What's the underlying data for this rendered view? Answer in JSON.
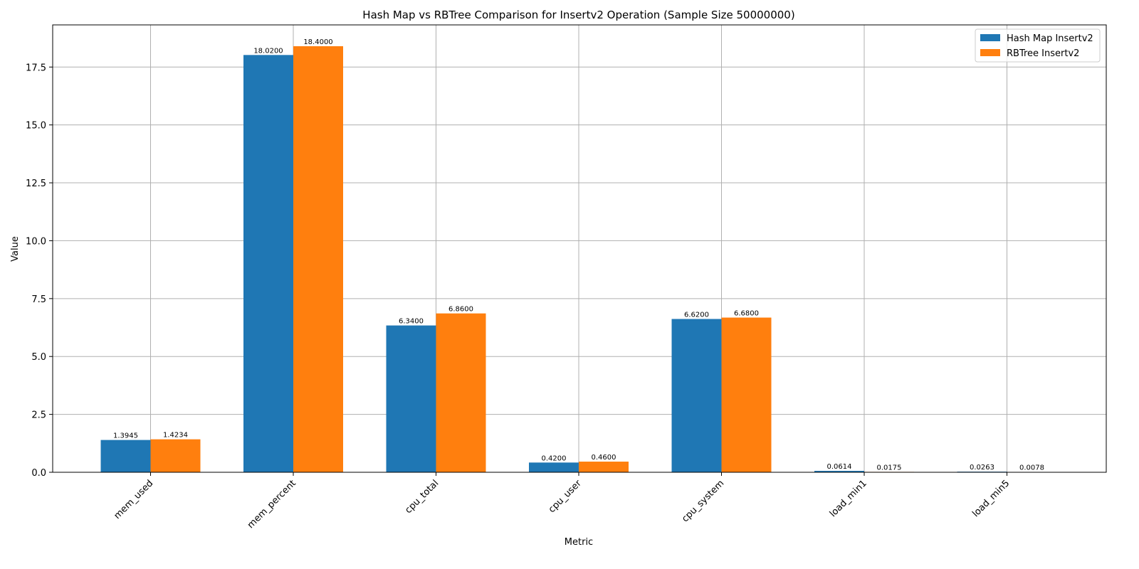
{
  "chart_data": {
    "type": "bar",
    "title": "Hash Map vs RBTree Comparison for Insertv2 Operation (Sample Size 50000000)",
    "xlabel": "Metric",
    "ylabel": "Value",
    "categories": [
      "mem_used",
      "mem_percent",
      "cpu_total",
      "cpu_user",
      "cpu_system",
      "load_min1",
      "load_min5"
    ],
    "series": [
      {
        "name": "Hash Map Insertv2",
        "color": "#1f77b4",
        "values": [
          1.3945,
          18.02,
          6.34,
          0.42,
          6.62,
          0.0614,
          0.0263
        ],
        "labels": [
          "1.3945",
          "18.0200",
          "6.3400",
          "0.4200",
          "6.6200",
          "0.0614",
          "0.0263"
        ]
      },
      {
        "name": "RBTree Insertv2",
        "color": "#ff7f0e",
        "values": [
          1.4234,
          18.4,
          6.86,
          0.46,
          6.68,
          0.0175,
          0.0078
        ],
        "labels": [
          "1.4234",
          "18.4000",
          "6.8600",
          "0.4600",
          "6.6800",
          "0.0175",
          "0.0078"
        ]
      }
    ],
    "ylim": [
      0,
      19.32
    ],
    "yticks": [
      0,
      2.5,
      5,
      7.5,
      10,
      12.5,
      15,
      17.5
    ],
    "ytick_labels": [
      "0.0",
      "2.5",
      "5.0",
      "7.5",
      "10.0",
      "12.5",
      "15.0",
      "17.5"
    ],
    "grid": true,
    "legend_position": "top-right"
  }
}
